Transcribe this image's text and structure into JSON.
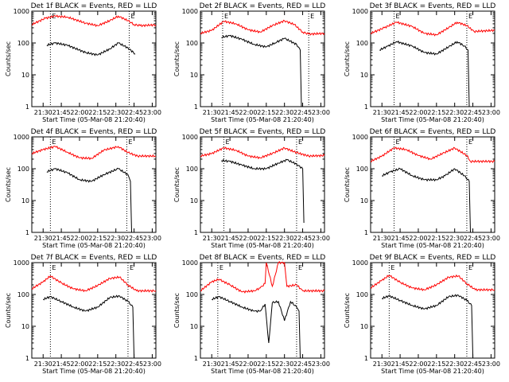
{
  "figure": {
    "x_tick_labels": [
      "21:30",
      "21:45",
      "22:00",
      "22:15",
      "22:30",
      "22:45",
      "23:00"
    ],
    "y_tick_labels": [
      "1",
      "10",
      "100",
      "1000"
    ],
    "xlabel": "Start Time (05-Mar-08 21:20:40)",
    "ylabel": "Counts/sec",
    "marker_letters": [
      "E",
      "E"
    ],
    "colors": {
      "events": "#000000",
      "lld": "#ff0000"
    }
  },
  "chart_data": [
    {
      "type": "line",
      "title": "Det 1f BLACK = Events, RED = LLD",
      "xlabel": "Start Time (05-Mar-08 21:20:40)",
      "ylabel": "Counts/sec",
      "x_range": [
        "21:20:40",
        "23:03:00"
      ],
      "ylim": [
        1,
        1000
      ],
      "y_scale": "log",
      "markers": [
        "21:36",
        "22:41"
      ],
      "series": [
        {
          "name": "LLD",
          "x": [
            "21:20:40",
            "21:32",
            "21:40",
            "21:50",
            "22:05",
            "22:15",
            "22:25",
            "22:32",
            "22:40",
            "22:45",
            "22:50",
            "23:03"
          ],
          "values": [
            380,
            600,
            700,
            650,
            420,
            350,
            500,
            700,
            500,
            380,
            350,
            370
          ]
        },
        {
          "name": "Events",
          "x": [
            "21:33",
            "21:40",
            "21:50",
            "22:05",
            "22:15",
            "22:25",
            "22:32",
            "22:40",
            "22:46"
          ],
          "values": [
            85,
            100,
            85,
            50,
            42,
            65,
            100,
            70,
            45
          ]
        }
      ]
    },
    {
      "type": "line",
      "title": "Det 2f BLACK = Events, RED = LLD",
      "xlabel": "Start Time (05-Mar-08 21:20:40)",
      "ylabel": "Counts/sec",
      "x_range": [
        "21:20:40",
        "23:03:00"
      ],
      "ylim": [
        1,
        1000
      ],
      "y_scale": "log",
      "markers": [
        "21:39",
        "22:50"
      ],
      "series": [
        {
          "name": "LLD",
          "x": [
            "21:20:40",
            "21:30",
            "21:40",
            "21:50",
            "22:00",
            "22:10",
            "22:20",
            "22:30",
            "22:38",
            "22:45",
            "22:50",
            "23:03"
          ],
          "values": [
            200,
            250,
            480,
            400,
            260,
            220,
            350,
            500,
            380,
            220,
            190,
            200
          ]
        },
        {
          "name": "Events",
          "x": [
            "21:38",
            "21:45",
            "21:55",
            "22:05",
            "22:15",
            "22:22",
            "22:30",
            "22:40",
            "22:43",
            "22:44"
          ],
          "values": [
            150,
            170,
            130,
            90,
            75,
            100,
            140,
            90,
            60,
            1
          ]
        }
      ]
    },
    {
      "type": "line",
      "title": "Det 3f BLACK = Events, RED = LLD",
      "xlabel": "Start Time (05-Mar-08 21:20:40)",
      "ylabel": "Counts/sec",
      "x_range": [
        "21:20:40",
        "23:03:00"
      ],
      "ylim": [
        1,
        1000
      ],
      "y_scale": "log",
      "markers": [
        "21:40",
        "22:40"
      ],
      "series": [
        {
          "name": "LLD",
          "x": [
            "21:20:40",
            "21:32",
            "21:42",
            "21:55",
            "22:05",
            "22:15",
            "22:25",
            "22:32",
            "22:40",
            "22:46",
            "23:03"
          ],
          "values": [
            200,
            300,
            450,
            330,
            200,
            180,
            300,
            450,
            350,
            230,
            250
          ]
        },
        {
          "name": "Events",
          "x": [
            "21:28",
            "21:35",
            "21:42",
            "21:55",
            "22:05",
            "22:15",
            "22:25",
            "22:32",
            "22:38",
            "22:41",
            "22:42"
          ],
          "values": [
            60,
            80,
            110,
            80,
            50,
            45,
            75,
            110,
            80,
            60,
            1
          ]
        }
      ]
    },
    {
      "type": "line",
      "title": "Det 4f BLACK = Events, RED = LLD",
      "xlabel": "Start Time (05-Mar-08 21:20:40)",
      "ylabel": "Counts/sec",
      "x_range": [
        "21:20:40",
        "23:03:00"
      ],
      "ylim": [
        1,
        1000
      ],
      "y_scale": "log",
      "markers": [
        "21:36",
        "22:39"
      ],
      "series": [
        {
          "name": "LLD",
          "x": [
            "21:20:40",
            "21:30",
            "21:40",
            "21:50",
            "22:00",
            "22:10",
            "22:20",
            "22:32",
            "22:40",
            "22:48",
            "23:03"
          ],
          "values": [
            300,
            400,
            500,
            330,
            220,
            210,
            380,
            500,
            320,
            250,
            250
          ]
        },
        {
          "name": "Events",
          "x": [
            "21:33",
            "21:40",
            "21:50",
            "22:00",
            "22:10",
            "22:20",
            "22:32",
            "22:40",
            "22:42",
            "22:43"
          ],
          "values": [
            80,
            100,
            75,
            45,
            40,
            65,
            100,
            65,
            40,
            1
          ]
        }
      ]
    },
    {
      "type": "line",
      "title": "Det 5f BLACK = Events, RED = LLD",
      "xlabel": "Start Time (05-Mar-08 21:20:40)",
      "ylabel": "Counts/sec",
      "x_range": [
        "21:20:40",
        "23:03:00"
      ],
      "ylim": [
        1,
        1000
      ],
      "y_scale": "log",
      "markers": [
        "21:40",
        "22:40"
      ],
      "series": [
        {
          "name": "LLD",
          "x": [
            "21:20:40",
            "21:30",
            "21:40",
            "21:50",
            "22:00",
            "22:10",
            "22:20",
            "22:30",
            "22:40",
            "22:50",
            "23:03"
          ],
          "values": [
            250,
            300,
            450,
            380,
            250,
            220,
            300,
            450,
            320,
            250,
            260
          ]
        },
        {
          "name": "Events",
          "x": [
            "21:38",
            "21:45",
            "21:55",
            "22:05",
            "22:15",
            "22:25",
            "22:32",
            "22:40",
            "22:45",
            "22:46"
          ],
          "values": [
            180,
            170,
            130,
            100,
            100,
            150,
            190,
            140,
            100,
            2
          ]
        }
      ]
    },
    {
      "type": "line",
      "title": "Det 6f BLACK = Events, RED = LLD",
      "xlabel": "Start Time (05-Mar-08 21:20:40)",
      "ylabel": "Counts/sec",
      "x_range": [
        "21:20:40",
        "23:03:00"
      ],
      "ylim": [
        1,
        1000
      ],
      "y_scale": "log",
      "markers": [
        "21:40",
        "22:40"
      ],
      "series": [
        {
          "name": "LLD",
          "x": [
            "21:20:40",
            "21:30",
            "21:40",
            "21:50",
            "22:00",
            "22:10",
            "22:20",
            "22:30",
            "22:40",
            "22:43",
            "23:03"
          ],
          "values": [
            170,
            250,
            450,
            400,
            260,
            200,
            300,
            450,
            260,
            170,
            170
          ]
        },
        {
          "name": "Events",
          "x": [
            "21:30",
            "21:37",
            "21:45",
            "21:55",
            "22:05",
            "22:15",
            "22:22",
            "22:30",
            "22:38",
            "22:42",
            "22:43"
          ],
          "values": [
            60,
            80,
            100,
            60,
            45,
            45,
            60,
            100,
            60,
            40,
            1
          ]
        }
      ]
    },
    {
      "type": "line",
      "title": "Det 7f BLACK = Events, RED = LLD",
      "xlabel": "Start Time (05-Mar-08 21:20:40)",
      "ylabel": "Counts/sec",
      "x_range": [
        "21:20:40",
        "23:03:00"
      ],
      "ylim": [
        1,
        1000
      ],
      "y_scale": "log",
      "markers": [
        "21:36",
        "22:40"
      ],
      "series": [
        {
          "name": "LLD",
          "x": [
            "21:20:40",
            "21:30",
            "21:36",
            "21:45",
            "21:55",
            "22:05",
            "22:15",
            "22:25",
            "22:33",
            "22:40",
            "22:47",
            "23:03"
          ],
          "values": [
            150,
            250,
            380,
            230,
            150,
            130,
            190,
            320,
            350,
            200,
            130,
            130
          ]
        },
        {
          "name": "Events",
          "x": [
            "21:30",
            "21:36",
            "21:45",
            "21:55",
            "22:05",
            "22:15",
            "22:25",
            "22:33",
            "22:40",
            "22:44",
            "22:45"
          ],
          "values": [
            70,
            85,
            60,
            40,
            30,
            40,
            80,
            90,
            60,
            40,
            1
          ]
        }
      ]
    },
    {
      "type": "line",
      "title": "Det 8f BLACK = Events, RED = LLD",
      "xlabel": "Start Time (05-Mar-08 21:20:40)",
      "ylabel": "Counts/sec",
      "x_range": [
        "21:20:40",
        "23:03:00"
      ],
      "ylim": [
        1,
        1000
      ],
      "y_scale": "log",
      "markers": [
        "21:35",
        "22:40"
      ],
      "series": [
        {
          "name": "LLD",
          "x": [
            "21:20:40",
            "21:30",
            "21:36",
            "21:45",
            "21:55",
            "22:05",
            "22:10",
            "22:14",
            "22:15",
            "22:20",
            "22:25",
            "22:30",
            "22:32",
            "22:40",
            "22:45",
            "23:03"
          ],
          "values": [
            130,
            250,
            300,
            200,
            120,
            130,
            160,
            220,
            1000,
            180,
            1000,
            1000,
            180,
            200,
            130,
            130
          ]
        },
        {
          "name": "Events",
          "x": [
            "21:30",
            "21:36",
            "21:45",
            "21:55",
            "22:05",
            "22:10",
            "22:14",
            "22:17",
            "22:20",
            "22:25",
            "22:30",
            "22:35",
            "22:40",
            "22:42",
            "22:43"
          ],
          "values": [
            70,
            85,
            60,
            40,
            30,
            30,
            50,
            3,
            55,
            60,
            15,
            60,
            40,
            30,
            1
          ]
        }
      ]
    },
    {
      "type": "line",
      "title": "Det 9f BLACK = Events, RED = LLD",
      "xlabel": "Start Time (05-Mar-08 21:20:40)",
      "ylabel": "Counts/sec",
      "x_range": [
        "21:20:40",
        "23:03:00"
      ],
      "ylim": [
        1,
        1000
      ],
      "y_scale": "log",
      "markers": [
        "21:36",
        "22:40"
      ],
      "series": [
        {
          "name": "LLD",
          "x": [
            "21:20:40",
            "21:30",
            "21:36",
            "21:45",
            "21:55",
            "22:05",
            "22:15",
            "22:25",
            "22:33",
            "22:40",
            "22:47",
            "23:03"
          ],
          "values": [
            160,
            280,
            400,
            240,
            160,
            140,
            200,
            350,
            380,
            220,
            140,
            140
          ]
        },
        {
          "name": "Events",
          "x": [
            "21:30",
            "21:36",
            "21:45",
            "21:55",
            "22:05",
            "22:15",
            "22:25",
            "22:33",
            "22:40",
            "22:44",
            "22:45"
          ],
          "values": [
            75,
            90,
            65,
            45,
            35,
            45,
            85,
            95,
            65,
            45,
            1
          ]
        }
      ]
    }
  ]
}
